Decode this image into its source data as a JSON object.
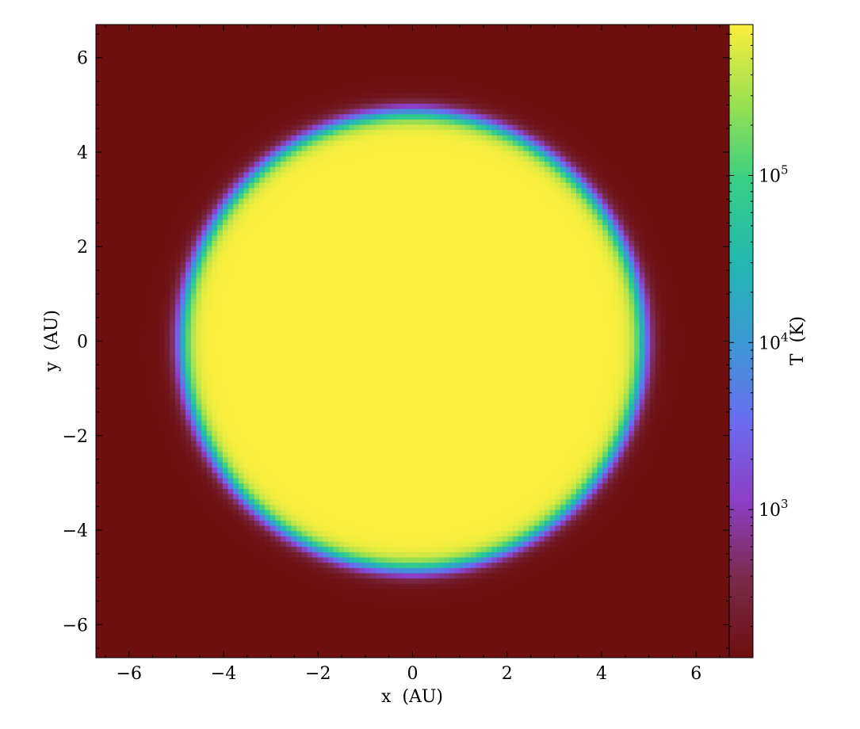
{
  "chart_data": {
    "type": "heatmap",
    "title": "",
    "xlabel": "x  (AU)",
    "ylabel": "y  (AU)",
    "xlim": [
      -6.7,
      6.7
    ],
    "ylim": [
      -6.7,
      6.7
    ],
    "xticks": [
      -6,
      -4,
      -2,
      0,
      2,
      4,
      6
    ],
    "yticks": [
      -6,
      -4,
      -2,
      0,
      2,
      4,
      6
    ],
    "xtick_labels": [
      "−6",
      "−4",
      "−2",
      "0",
      "2",
      "4",
      "6"
    ],
    "ytick_labels": [
      "−6",
      "−4",
      "−2",
      "0",
      "2",
      "4",
      "6"
    ],
    "field": {
      "shape": "disk",
      "center": [
        0,
        0
      ],
      "hot_radius_x_AU": 4.9,
      "hot_radius_y_AU": 4.85,
      "hot_temperature_K": 800000,
      "background_temperature_K": 130,
      "transition_width_AU": 0.55
    },
    "colorbar": {
      "label": "T  (K)",
      "scale": "log",
      "range": [
        130,
        800000
      ],
      "ticks": [
        {
          "value": 1000,
          "base": "10",
          "exp": "3"
        },
        {
          "value": 10000,
          "base": "10",
          "exp": "4"
        },
        {
          "value": 100000,
          "base": "10",
          "exp": "5"
        }
      ],
      "colors": [
        "#6e0f0f",
        "#7a2a4a",
        "#8e3fc8",
        "#6a6df0",
        "#3b99d4",
        "#22b8b0",
        "#35cf86",
        "#99e050",
        "#fbee3c"
      ]
    },
    "grid": false,
    "legend": "none"
  }
}
